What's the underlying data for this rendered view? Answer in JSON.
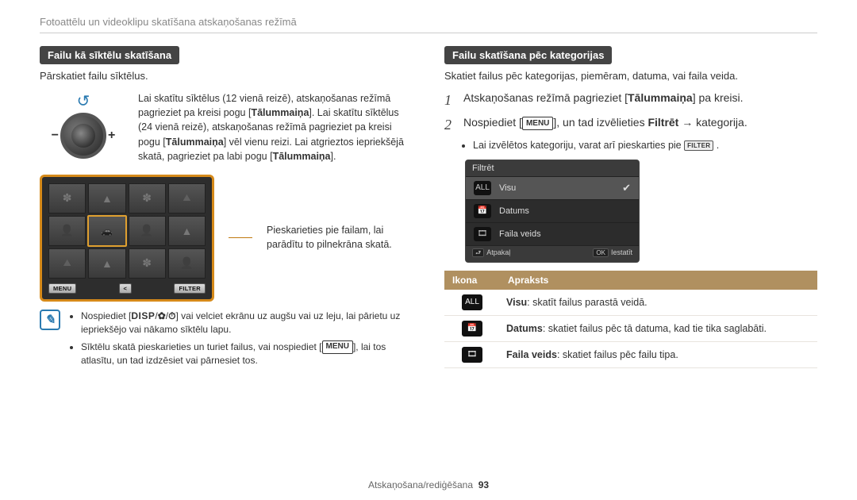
{
  "breadcrumb": "Fotoattēlu un videoklipu skatīšana atskaņošanas režīmā",
  "left": {
    "heading": "Failu kā sīktēlu skatīšana",
    "intro": "Pārskatiet failu sīktēlus.",
    "dial_text_parts": {
      "p1": "Lai skatītu sīktēlus (12 vienā reizē), atskaņošanas režīmā pagrieziet pa kreisi pogu [",
      "b1": "Tālummaiņa",
      "p2": "]. Lai skatītu sīktēlus (24 vienā reizē), atskaņošanas režīmā pagrieziet pa kreisi pogu [",
      "b2": "Tālummaiņa",
      "p3": "] vēl vienu reizi. Lai atgrieztos iepriekšējā skatā, pagrieziet pa labi pogu [",
      "b3": "Tālummaiņa",
      "p4": "]."
    },
    "screen_buttons": {
      "menu": "MENU",
      "share": "<",
      "filter": "FILTER"
    },
    "callout": "Pieskarieties pie failam, lai parādītu to pilnekrāna skatā.",
    "notes": {
      "n1_a": "Nospiediet [",
      "n1_disp": "DISP",
      "n1_b": "] vai velciet ekrānu uz augšu vai uz leju, lai pārietu uz iepriekšējo vai nākamo sīktēlu lapu.",
      "n2_a": "Sīktēlu skatā pieskarieties un turiet failus, vai nospiediet [",
      "n2_menu": "MENU",
      "n2_b": "], lai tos atlasītu, un tad izdzēsiet vai pārnesiet tos."
    }
  },
  "right": {
    "heading": "Failu skatīšana pēc kategorijas",
    "intro": "Skatiet failus pēc kategorijas, piemēram, datuma, vai faila veida.",
    "step1_a": "Atskaņošanas režīmā pagrieziet [",
    "step1_b": "Tālummaiņa",
    "step1_c": "] pa kreisi.",
    "step2_a": "Nospiediet [",
    "step2_menu": "MENU",
    "step2_b": "], un tad izvēlieties ",
    "step2_filter": "Filtrēt",
    "step2_c": " → kategorija.",
    "sub_a": "Lai izvēlētos kategoriju, varat arī pieskarties pie ",
    "sub_key": "FILTER",
    "sub_b": " .",
    "filter_menu": {
      "title": "Filtrēt",
      "items": [
        {
          "icon": "ALL",
          "label": "Visu",
          "selected": true
        },
        {
          "icon": "📅",
          "label": "Datums",
          "selected": false
        },
        {
          "icon": "🎞",
          "label": "Faila veids",
          "selected": false
        }
      ],
      "back": "Atpakaļ",
      "ok": "Iestatīt"
    },
    "table": {
      "col_icon": "Ikona",
      "col_desc": "Apraksts",
      "rows": [
        {
          "icon": "ALL",
          "bold": "Visu",
          "text": ": skatīt failus parastā veidā."
        },
        {
          "icon": "📅",
          "bold": "Datums",
          "text": ": skatiet failus pēc tā datuma, kad tie tika saglabāti."
        },
        {
          "icon": "🎞",
          "bold": "Faila veids",
          "text": ": skatiet failus pēc failu tipa."
        }
      ]
    }
  },
  "footer": {
    "section": "Atskaņošana/rediģēšana",
    "page": "93"
  },
  "colors": {
    "heading_bg": "#444444",
    "accent_orange": "#d68a1a",
    "note_blue": "#2a7ab0",
    "table_header": "#b09060"
  }
}
